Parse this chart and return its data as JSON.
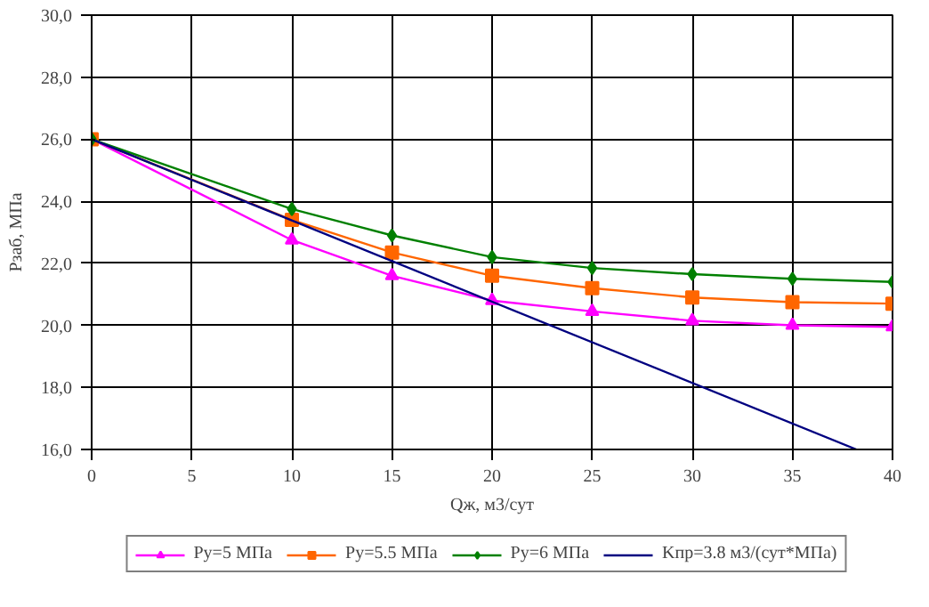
{
  "chart_data": {
    "type": "line",
    "xlabel": "Qж, м3/сут",
    "ylabel": "Pзаб, МПа",
    "series": [
      {
        "name": "Py=5 МПа",
        "color": "#ff00ff",
        "marker": "triangle",
        "x": [
          0,
          10,
          15,
          20,
          25,
          30,
          35,
          40
        ],
        "values": [
          26.0,
          22.75,
          21.6,
          20.8,
          20.45,
          20.15,
          20.0,
          19.95
        ]
      },
      {
        "name": "Py=5.5 МПа",
        "color": "#ff6600",
        "marker": "square",
        "x": [
          0,
          10,
          15,
          20,
          25,
          30,
          35,
          40
        ],
        "values": [
          26.0,
          23.4,
          22.35,
          21.6,
          21.2,
          20.9,
          20.75,
          20.7
        ]
      },
      {
        "name": "Py=6 МПа",
        "color": "#008000",
        "marker": "diamond",
        "x": [
          0,
          10,
          15,
          20,
          25,
          30,
          35,
          40
        ],
        "values": [
          26.0,
          23.75,
          22.9,
          22.2,
          21.85,
          21.65,
          21.5,
          21.4
        ]
      },
      {
        "name": "Kпр=3.8 м3/(сут*МПа)",
        "color": "#000080",
        "marker": "none",
        "x": [
          0,
          38.2
        ],
        "values": [
          26.0,
          16.0
        ]
      }
    ],
    "xlim": [
      0,
      40
    ],
    "xticks": [
      0,
      5,
      10,
      15,
      20,
      25,
      30,
      35,
      40
    ],
    "ylim": [
      16,
      30
    ],
    "yticks": [
      {
        "value": 16,
        "label": "16,0"
      },
      {
        "value": 18,
        "label": "18,0"
      },
      {
        "value": 20,
        "label": "20,0"
      },
      {
        "value": 22,
        "label": "22,0"
      },
      {
        "value": 24,
        "label": "24,0"
      },
      {
        "value": 26,
        "label": "26,0"
      },
      {
        "value": 28,
        "label": "28,0"
      },
      {
        "value": 30,
        "label": "30,0"
      }
    ],
    "grid": true,
    "legend": "bottom",
    "line_style": "solid"
  }
}
